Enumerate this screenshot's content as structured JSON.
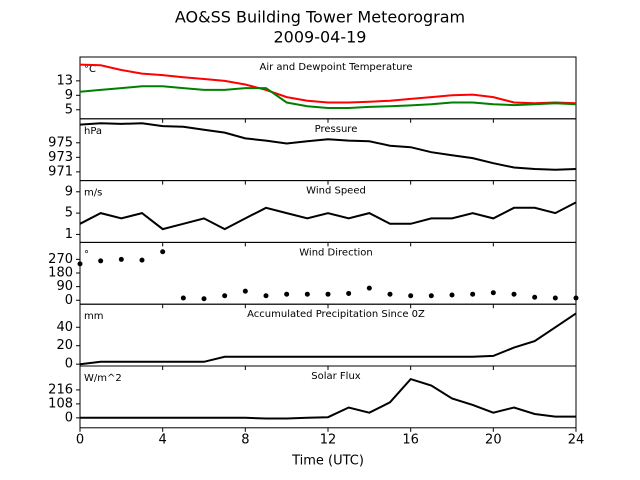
{
  "title": "AO&SS Building Tower Meteorogram",
  "subtitle": "2009-04-19",
  "chart_data": [
    {
      "type": "line",
      "title": "Air and Dewpoint Temperature",
      "unit": "°C",
      "x": [
        0,
        1,
        2,
        3,
        4,
        5,
        6,
        7,
        8,
        9,
        10,
        11,
        12,
        13,
        14,
        15,
        16,
        17,
        18,
        19,
        20,
        21,
        22,
        23,
        24
      ],
      "xlim": [
        0,
        24
      ],
      "ylim": [
        2.5,
        19.6
      ],
      "yticks": [
        5,
        9,
        13
      ],
      "series": [
        {
          "color": "#ff0000",
          "values": [
            17.5,
            17.3,
            16,
            15,
            14.6,
            14,
            13.5,
            13,
            12,
            10.5,
            8.5,
            7.5,
            7,
            7,
            7.2,
            7.5,
            8,
            8.5,
            9,
            9.2,
            8.5,
            7,
            6.8,
            7,
            6.8
          ]
        },
        {
          "color": "#008000",
          "values": [
            10,
            10.5,
            11,
            11.5,
            11.5,
            11,
            10.5,
            10.5,
            11,
            11,
            7,
            6,
            5.5,
            5.5,
            5.8,
            6,
            6.2,
            6.5,
            7,
            7,
            6.5,
            6.3,
            6.5,
            6.8,
            6.5
          ]
        }
      ]
    },
    {
      "type": "line",
      "title": "Pressure",
      "unit": "hPa",
      "x": [
        0,
        1,
        2,
        3,
        4,
        5,
        6,
        7,
        8,
        9,
        10,
        11,
        12,
        13,
        14,
        15,
        16,
        17,
        18,
        19,
        20,
        21,
        22,
        23,
        24
      ],
      "xlim": [
        0,
        24
      ],
      "ylim": [
        969.8,
        978.3
      ],
      "yticks": [
        971,
        973,
        975
      ],
      "series": [
        {
          "color": "#000000",
          "values": [
            977.5,
            977.7,
            977.6,
            977.7,
            977.3,
            977.2,
            976.8,
            976.4,
            975.6,
            975.3,
            974.9,
            975.2,
            975.5,
            975.3,
            975.2,
            974.6,
            974.4,
            973.7,
            973.3,
            972.9,
            972.2,
            971.6,
            971.4,
            971.3,
            971.4
          ]
        }
      ]
    },
    {
      "type": "line",
      "title": "Wind Speed",
      "unit": "m/s",
      "x": [
        0,
        1,
        2,
        3,
        4,
        5,
        6,
        7,
        8,
        9,
        10,
        11,
        12,
        13,
        14,
        15,
        16,
        17,
        18,
        19,
        20,
        21,
        22,
        23,
        24
      ],
      "xlim": [
        0,
        24
      ],
      "ylim": [
        -0.5,
        11.1
      ],
      "yticks": [
        1,
        5,
        9
      ],
      "series": [
        {
          "color": "#000000",
          "values": [
            3,
            5,
            4,
            5,
            2,
            3,
            4,
            2,
            4,
            6,
            5,
            4,
            5,
            4,
            5,
            3,
            3,
            4,
            4,
            5,
            4,
            6,
            6,
            5,
            7
          ]
        }
      ]
    },
    {
      "type": "scatter",
      "title": "Wind Direction",
      "unit": "°",
      "x": [
        0,
        1,
        2,
        3,
        4,
        5,
        6,
        7,
        8,
        9,
        10,
        11,
        12,
        13,
        14,
        15,
        16,
        17,
        18,
        19,
        20,
        21,
        22,
        23,
        24
      ],
      "xlim": [
        0,
        24
      ],
      "ylim": [
        -26,
        382
      ],
      "yticks": [
        0,
        90,
        180,
        270
      ],
      "series": [
        {
          "color": "#000000",
          "values": [
            240,
            260,
            270,
            265,
            320,
            15,
            10,
            30,
            60,
            30,
            40,
            40,
            40,
            45,
            80,
            40,
            30,
            30,
            35,
            40,
            50,
            40,
            20,
            15,
            15
          ]
        }
      ]
    },
    {
      "type": "line",
      "title": "Accumulated Precipitation Since 0Z",
      "unit": "mm",
      "x": [
        0,
        1,
        2,
        3,
        4,
        5,
        6,
        7,
        8,
        9,
        10,
        11,
        12,
        13,
        14,
        15,
        16,
        17,
        18,
        19,
        20,
        21,
        22,
        23,
        24
      ],
      "xlim": [
        0,
        24
      ],
      "ylim": [
        -2,
        65
      ],
      "yticks": [
        0,
        20,
        40
      ],
      "series": [
        {
          "color": "#000000",
          "values": [
            0,
            2.6,
            2.6,
            2.6,
            2.6,
            2.6,
            2.6,
            8,
            8,
            8,
            8,
            8,
            8,
            8,
            8,
            8,
            8,
            8,
            8,
            8,
            9,
            18,
            25,
            40,
            55
          ]
        }
      ]
    },
    {
      "type": "line",
      "title": "Solar Flux",
      "unit": "W/m^2",
      "x": [
        0,
        1,
        2,
        3,
        4,
        5,
        6,
        7,
        8,
        9,
        10,
        11,
        12,
        13,
        14,
        15,
        16,
        17,
        18,
        19,
        20,
        21,
        22,
        23,
        24
      ],
      "xlim": [
        0,
        24
      ],
      "ylim": [
        -77,
        401
      ],
      "yticks": [
        0,
        108,
        216
      ],
      "xticks": [
        0,
        4,
        8,
        12,
        16,
        20,
        24
      ],
      "xlabel": "Time (UTC)",
      "series": [
        {
          "color": "#000000",
          "values": [
            0,
            0,
            0,
            0,
            0,
            0,
            0,
            0,
            0,
            -5,
            -5,
            0,
            5,
            80,
            40,
            120,
            300,
            250,
            150,
            100,
            40,
            80,
            30,
            10,
            10
          ]
        }
      ]
    }
  ]
}
